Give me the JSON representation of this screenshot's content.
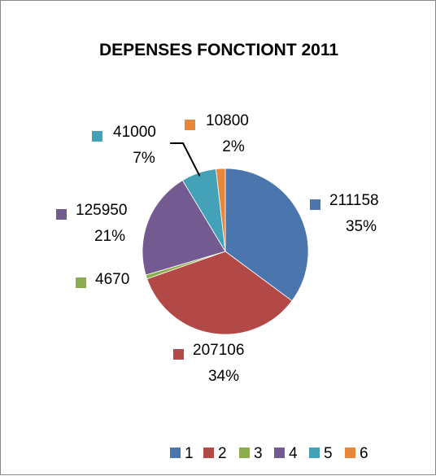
{
  "chart_data": {
    "type": "pie",
    "title": "DEPENSES FONCTIONT 2011",
    "slices": [
      {
        "name": "1",
        "value": 211158,
        "value_label": "211158",
        "percent_label": "35%",
        "color": "#4a76ad"
      },
      {
        "name": "2",
        "value": 207106,
        "value_label": "207106",
        "percent_label": "34%",
        "color": "#b24946"
      },
      {
        "name": "3",
        "value": 4670,
        "value_label": "4670",
        "percent_label": "",
        "color": "#8dad4f"
      },
      {
        "name": "4",
        "value": 125950,
        "value_label": "125950",
        "percent_label": "21%",
        "color": "#735a91"
      },
      {
        "name": "5",
        "value": 41000,
        "value_label": "41000",
        "percent_label": "7%",
        "color": "#43a1b8"
      },
      {
        "name": "6",
        "value": 10800,
        "value_label": "10800",
        "percent_label": "2%",
        "color": "#e8873a"
      }
    ],
    "legend": {
      "position": "bottom",
      "entries": [
        "1",
        "2",
        "3",
        "4",
        "5",
        "6"
      ]
    }
  }
}
